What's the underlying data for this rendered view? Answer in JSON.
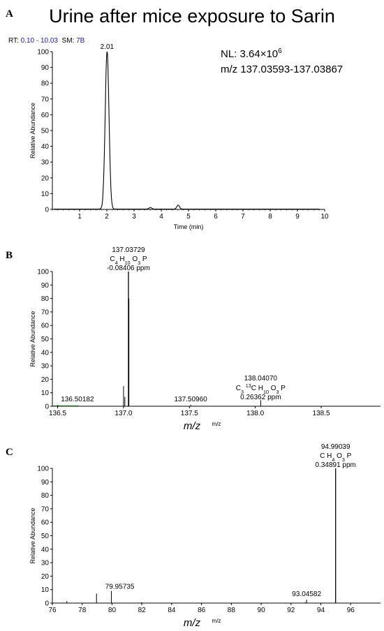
{
  "title": "Urine after mice exposure to Sarin",
  "panel_labels": [
    "A",
    "B",
    "C"
  ],
  "panel_a_header": {
    "rt_label": "RT:",
    "rt_value": "0.10 - 10.03",
    "sm_label": "SM:",
    "sm_value": "7B"
  },
  "panel_a_note": {
    "nl_prefix": "NL: 3.64×10",
    "nl_exponent": "6",
    "mz_range": "m/z 137.03593-137.03867"
  },
  "colors": {
    "trace": "#000000",
    "header_value": "#1a1aa8",
    "green_line": "#3c9a3c"
  },
  "chart_data": [
    {
      "type": "line",
      "panel": "A",
      "xlabel": "Time (min)",
      "ylabel": "Relative Abundance",
      "xlim": [
        0,
        10
      ],
      "ylim": [
        0,
        100
      ],
      "xticks": [
        1,
        2,
        3,
        4,
        5,
        6,
        7,
        8,
        9,
        10
      ],
      "yticks": [
        0,
        10,
        20,
        30,
        40,
        50,
        60,
        70,
        80,
        90,
        100
      ],
      "peaks": [
        {
          "x": 2.01,
          "y": 100,
          "label": "2.01"
        },
        {
          "x": 3.6,
          "y": 1
        },
        {
          "x": 4.62,
          "y": 2.5
        }
      ]
    },
    {
      "type": "bar",
      "panel": "B",
      "xlabel": "m/z",
      "ylabel": "Relative Abundance",
      "xlim": [
        136.46,
        138.95
      ],
      "ylim": [
        0,
        100
      ],
      "xticks": [
        "136.5",
        "137.0",
        "137.5",
        "138.0",
        "138.5"
      ],
      "yticks": [
        0,
        10,
        20,
        30,
        40,
        50,
        60,
        70,
        80,
        90,
        100
      ],
      "peaks": [
        {
          "x": 136.50182,
          "y": 1,
          "label": "136.50182"
        },
        {
          "x": 137.0,
          "y": 15
        },
        {
          "x": 137.01,
          "y": 7
        },
        {
          "x": 137.03729,
          "y": 100,
          "label": "137.03729",
          "formula": [
            "C",
            "4",
            " H",
            "10",
            " O",
            "3",
            " P"
          ],
          "ppm": "-0.08406 ppm"
        },
        {
          "x": 137.04,
          "y": 80
        },
        {
          "x": 137.5096,
          "y": 1,
          "label": "137.50960"
        },
        {
          "x": 138.0407,
          "y": 4.5,
          "label": "138.04070",
          "formula": [
            "C",
            "3",
            " ",
            "13",
            "C H",
            "10",
            " O",
            "3",
            " P"
          ],
          "ppm": "0.26362 ppm"
        }
      ],
      "axis_unit": "m/z"
    },
    {
      "type": "bar",
      "panel": "C",
      "xlabel": "m/z",
      "ylabel": "Relative Abundance",
      "xlim": [
        76,
        98
      ],
      "ylim": [
        0,
        100
      ],
      "xticks": [
        76,
        78,
        80,
        82,
        84,
        86,
        88,
        90,
        92,
        94,
        96
      ],
      "yticks": [
        0,
        10,
        20,
        30,
        40,
        50,
        60,
        70,
        80,
        90,
        100
      ],
      "peaks": [
        {
          "x": 76.97,
          "y": 1.5
        },
        {
          "x": 78.96,
          "y": 7
        },
        {
          "x": 79.95735,
          "y": 9,
          "label": "79.95735"
        },
        {
          "x": 81.97,
          "y": 0.5
        },
        {
          "x": 92.97,
          "y": 0.5
        },
        {
          "x": 93.04582,
          "y": 2.5,
          "label": "93.04582"
        },
        {
          "x": 94.99039,
          "y": 100,
          "label": "94.99039",
          "formula": [
            "C H",
            "4",
            " O",
            "3",
            " P"
          ],
          "ppm": "0.34891 ppm"
        }
      ],
      "axis_unit": "m/z"
    }
  ]
}
